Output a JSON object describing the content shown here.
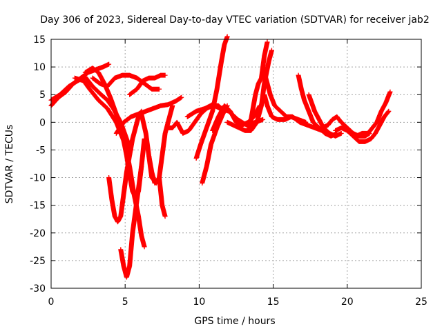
{
  "chart_data": {
    "type": "scatter",
    "title": "Day 306 of 2023, Sidereal Day-to-day VTEC variation (SDTVAR) for receiver jab2",
    "xlabel": "GPS time / hours",
    "ylabel": "SDTVAR / TECUs",
    "xlim": [
      0,
      25
    ],
    "ylim": [
      -30,
      15
    ],
    "xticks": [
      0,
      5,
      10,
      15,
      20,
      25
    ],
    "yticks": [
      -30,
      -25,
      -20,
      -15,
      -10,
      -5,
      0,
      5,
      10,
      15
    ],
    "xtick_labels": [
      "0",
      "5",
      "10",
      "15",
      "20",
      "25"
    ],
    "ytick_labels": [
      "-30",
      "-25",
      "-20",
      "-15",
      "-10",
      "-5",
      "0",
      "5",
      "10",
      "15"
    ],
    "grid": true,
    "marker": "+",
    "color": "#ff0000",
    "series": [
      {
        "name": "s1",
        "points": [
          [
            0,
            3
          ],
          [
            0.5,
            4.5
          ],
          [
            1,
            5.5
          ],
          [
            1.5,
            7
          ],
          [
            2,
            8
          ],
          [
            2.5,
            9
          ],
          [
            3,
            9.5
          ],
          [
            3.5,
            10
          ],
          [
            3.9,
            10.5
          ]
        ]
      },
      {
        "name": "s2",
        "points": [
          [
            0,
            4
          ],
          [
            0.6,
            5
          ],
          [
            1.2,
            6.5
          ],
          [
            1.8,
            7.5
          ],
          [
            2.3,
            8.2
          ],
          [
            2.8,
            6.5
          ],
          [
            3.3,
            5.2
          ],
          [
            3.8,
            4
          ],
          [
            4.2,
            2.5
          ],
          [
            4.7,
            0
          ],
          [
            5.1,
            -3
          ],
          [
            5.4,
            -5
          ]
        ]
      },
      {
        "name": "s3",
        "points": [
          [
            1.6,
            8
          ],
          [
            2.2,
            7.5
          ],
          [
            2.6,
            6
          ],
          [
            3.2,
            4
          ],
          [
            3.8,
            2.5
          ],
          [
            4.4,
            0
          ],
          [
            5,
            -4
          ],
          [
            5.3,
            -8
          ],
          [
            5.6,
            -13
          ],
          [
            5.9,
            -17
          ],
          [
            6.1,
            -20.5
          ],
          [
            6.3,
            -22.5
          ]
        ]
      },
      {
        "name": "s4",
        "points": [
          [
            2.3,
            9
          ],
          [
            2.8,
            9.8
          ],
          [
            3.2,
            9
          ],
          [
            3.6,
            7
          ],
          [
            4,
            4.5
          ],
          [
            4.4,
            1.5
          ],
          [
            4.8,
            -2
          ],
          [
            5.1,
            -6
          ],
          [
            5.3,
            -9.5
          ],
          [
            5.5,
            -12.5
          ],
          [
            5.7,
            -13.5
          ],
          [
            5.9,
            -12.5
          ],
          [
            6.1,
            -8
          ],
          [
            6.3,
            -3
          ]
        ]
      },
      {
        "name": "s5",
        "points": [
          [
            4.7,
            -23
          ],
          [
            4.9,
            -26
          ],
          [
            5.1,
            -28
          ],
          [
            5.3,
            -26
          ],
          [
            5.5,
            -20
          ],
          [
            5.8,
            -14
          ],
          [
            6.1,
            -8
          ]
        ]
      },
      {
        "name": "s6",
        "points": [
          [
            3.9,
            -10
          ],
          [
            4.1,
            -14
          ],
          [
            4.3,
            -17
          ],
          [
            4.5,
            -18
          ],
          [
            4.7,
            -17
          ],
          [
            4.9,
            -13
          ],
          [
            5.1,
            -9
          ],
          [
            5.3,
            -6
          ],
          [
            5.5,
            -3
          ],
          [
            5.7,
            -1
          ],
          [
            5.9,
            1
          ],
          [
            6.1,
            2
          ]
        ]
      },
      {
        "name": "s7",
        "points": [
          [
            5.3,
            5
          ],
          [
            5.8,
            6
          ],
          [
            6.2,
            7.5
          ],
          [
            6.6,
            8
          ],
          [
            7,
            8
          ],
          [
            7.4,
            8.5
          ],
          [
            7.7,
            8.5
          ]
        ]
      },
      {
        "name": "s8",
        "points": [
          [
            2.8,
            8
          ],
          [
            3.3,
            7
          ],
          [
            3.8,
            6.5
          ],
          [
            4.3,
            8
          ],
          [
            4.8,
            8.5
          ],
          [
            5.3,
            8.5
          ],
          [
            5.8,
            8
          ],
          [
            6.3,
            7
          ],
          [
            6.8,
            6
          ],
          [
            7.3,
            6
          ]
        ]
      },
      {
        "name": "s9",
        "points": [
          [
            4.4,
            -2
          ],
          [
            4.9,
            0
          ],
          [
            5.4,
            1
          ],
          [
            5.9,
            1.5
          ],
          [
            6.4,
            2
          ],
          [
            6.9,
            2.5
          ],
          [
            7.4,
            3
          ],
          [
            7.9,
            3.2
          ],
          [
            8.4,
            3.8
          ],
          [
            8.8,
            4.5
          ]
        ]
      },
      {
        "name": "s10",
        "points": [
          [
            6.1,
            1.5
          ],
          [
            6.4,
            -2
          ],
          [
            6.6,
            -6
          ],
          [
            6.8,
            -10
          ],
          [
            7.1,
            -11
          ],
          [
            7.3,
            -10
          ],
          [
            7.5,
            -6
          ],
          [
            7.7,
            -2
          ],
          [
            7.9,
            0
          ],
          [
            8.2,
            3
          ]
        ]
      },
      {
        "name": "s11",
        "points": [
          [
            6.6,
            -6
          ],
          [
            6.8,
            -9
          ],
          [
            7,
            -11
          ],
          [
            7.3,
            -10
          ],
          [
            7.5,
            -15
          ],
          [
            7.7,
            -17
          ]
        ]
      },
      {
        "name": "s12",
        "points": [
          [
            7.9,
            -1
          ],
          [
            8.2,
            -1
          ],
          [
            8.5,
            0
          ],
          [
            8.9,
            -2
          ],
          [
            9.3,
            -1.5
          ],
          [
            9.7,
            0
          ],
          [
            10.1,
            1.5
          ],
          [
            10.5,
            2.5
          ],
          [
            10.9,
            3
          ],
          [
            11.3,
            3
          ],
          [
            11.7,
            2
          ]
        ]
      },
      {
        "name": "s13",
        "points": [
          [
            9.2,
            1
          ],
          [
            9.8,
            2
          ],
          [
            10.4,
            2.5
          ],
          [
            10.9,
            3.2
          ],
          [
            11.4,
            2.5
          ],
          [
            12,
            2
          ],
          [
            12.6,
            0.5
          ],
          [
            13.2,
            -0.5
          ],
          [
            13.8,
            0
          ],
          [
            14.3,
            0.5
          ]
        ]
      },
      {
        "name": "s14",
        "points": [
          [
            9.8,
            -6.5
          ],
          [
            10.1,
            -4
          ],
          [
            10.5,
            -1
          ],
          [
            10.9,
            2
          ],
          [
            11.2,
            6
          ],
          [
            11.5,
            11
          ],
          [
            11.7,
            14
          ],
          [
            11.9,
            15.5
          ]
        ]
      },
      {
        "name": "s15",
        "points": [
          [
            10.2,
            -11
          ],
          [
            10.5,
            -8
          ],
          [
            10.8,
            -4
          ],
          [
            11.2,
            -1
          ],
          [
            11.6,
            1.5
          ],
          [
            11.9,
            3
          ]
        ]
      },
      {
        "name": "s16",
        "points": [
          [
            10.9,
            -1.5
          ],
          [
            11.3,
            1
          ],
          [
            11.7,
            3
          ],
          [
            12.1,
            2
          ],
          [
            12.5,
            0
          ],
          [
            12.9,
            -0.5
          ],
          [
            13.3,
            0
          ],
          [
            13.7,
            1
          ],
          [
            14.1,
            3
          ]
        ]
      },
      {
        "name": "s17",
        "points": [
          [
            11.9,
            0
          ],
          [
            12.3,
            -0.5
          ],
          [
            12.7,
            -1
          ],
          [
            13.1,
            -1.5
          ],
          [
            13.5,
            -1.5
          ],
          [
            13.9,
            0
          ],
          [
            14.2,
            3
          ],
          [
            14.4,
            7
          ],
          [
            14.7,
            11
          ],
          [
            14.9,
            13
          ]
        ]
      },
      {
        "name": "s18",
        "points": [
          [
            13.4,
            -1
          ],
          [
            13.6,
            2
          ],
          [
            13.8,
            5
          ],
          [
            14,
            7
          ],
          [
            14.2,
            8
          ],
          [
            14.4,
            12
          ],
          [
            14.6,
            14.5
          ]
        ]
      },
      {
        "name": "s19",
        "points": [
          [
            14.4,
            5
          ],
          [
            14.6,
            3
          ],
          [
            14.9,
            1
          ],
          [
            15.3,
            0.5
          ],
          [
            15.8,
            0.5
          ],
          [
            16.2,
            1
          ],
          [
            16.7,
            0.5
          ],
          [
            17.2,
            0
          ]
        ]
      },
      {
        "name": "s20",
        "points": [
          [
            14.3,
            10
          ],
          [
            14.5,
            8
          ],
          [
            14.8,
            5
          ],
          [
            15.1,
            3
          ],
          [
            15.5,
            2
          ],
          [
            15.9,
            1
          ],
          [
            16.3,
            1
          ],
          [
            16.8,
            0
          ],
          [
            17.3,
            -0.5
          ],
          [
            17.8,
            -1
          ],
          [
            18.3,
            -1.5
          ],
          [
            18.8,
            -2
          ]
        ]
      },
      {
        "name": "s21",
        "points": [
          [
            16.7,
            8.5
          ],
          [
            16.9,
            6
          ],
          [
            17.1,
            4
          ],
          [
            17.4,
            2
          ],
          [
            17.7,
            0
          ],
          [
            18.1,
            -1
          ],
          [
            18.5,
            -2
          ],
          [
            18.9,
            -2.5
          ],
          [
            19.3,
            -2
          ]
        ]
      },
      {
        "name": "s22",
        "points": [
          [
            17.4,
            5
          ],
          [
            17.6,
            3.5
          ],
          [
            17.8,
            2
          ],
          [
            18.1,
            0.5
          ],
          [
            18.4,
            -1
          ],
          [
            18.8,
            -2
          ],
          [
            19.2,
            -2.5
          ],
          [
            19.6,
            -2
          ]
        ]
      },
      {
        "name": "s23",
        "points": [
          [
            18.3,
            -1
          ],
          [
            18.7,
            -0.5
          ],
          [
            19,
            0.5
          ],
          [
            19.3,
            1
          ],
          [
            19.6,
            0
          ],
          [
            20,
            -1
          ],
          [
            20.4,
            -2
          ],
          [
            20.8,
            -2.5
          ],
          [
            21.2,
            -2.5
          ],
          [
            21.5,
            -2
          ]
        ]
      },
      {
        "name": "s24",
        "points": [
          [
            19.2,
            -1.5
          ],
          [
            19.6,
            -1
          ],
          [
            20,
            -1.5
          ],
          [
            20.4,
            -2.5
          ],
          [
            20.8,
            -3.5
          ],
          [
            21.2,
            -3.5
          ],
          [
            21.6,
            -3
          ],
          [
            21.9,
            -2
          ],
          [
            22.2,
            -0.5
          ],
          [
            22.5,
            1
          ],
          [
            22.8,
            2
          ]
        ]
      },
      {
        "name": "s25",
        "points": [
          [
            20.6,
            -2.5
          ],
          [
            21,
            -2
          ],
          [
            21.4,
            -2
          ],
          [
            21.7,
            -1
          ],
          [
            22,
            0
          ],
          [
            22.3,
            2
          ],
          [
            22.6,
            3.5
          ],
          [
            22.9,
            5.5
          ]
        ]
      }
    ]
  }
}
